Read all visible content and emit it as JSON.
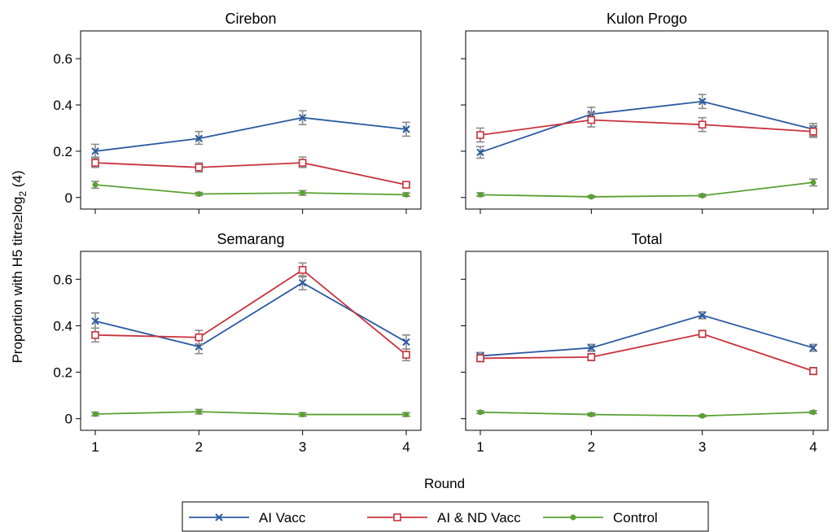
{
  "chart_data": {
    "type": "line",
    "xlabel": "Round",
    "ylabel_parts": [
      "Proportion with H5 titre≥log",
      "2",
      " (4)"
    ],
    "x": [
      1,
      2,
      3,
      4
    ],
    "xlim": [
      1,
      4
    ],
    "ylim": [
      -0.05,
      0.72
    ],
    "xticks": [
      1,
      2,
      3,
      4
    ],
    "yticks": [
      0,
      0.2,
      0.4,
      0.6
    ],
    "ytick_labels": [
      "0",
      "0.2",
      "0.4",
      "0.6"
    ],
    "grid": false,
    "legend_position": "bottom",
    "series_style": [
      {
        "name": "AI Vacc",
        "color": "#2b5aa0",
        "marker": "x"
      },
      {
        "name": "AI & ND Vacc",
        "color": "#c8323c",
        "marker": "square"
      },
      {
        "name": "Control",
        "color": "#5aa032",
        "marker": "dot"
      }
    ],
    "error_color": "#8c8c8c",
    "panels": [
      {
        "title": "Cirebon",
        "series": [
          {
            "name": "AI Vacc",
            "values": [
              0.2,
              0.255,
              0.345,
              0.295
            ],
            "lower": [
              0.175,
              0.23,
              0.315,
              0.265
            ],
            "upper": [
              0.23,
              0.285,
              0.375,
              0.325
            ]
          },
          {
            "name": "AI & ND Vacc",
            "values": [
              0.15,
              0.13,
              0.15,
              0.055
            ],
            "lower": [
              0.13,
              0.11,
              0.13,
              0.045
            ],
            "upper": [
              0.17,
              0.15,
              0.175,
              0.065
            ]
          },
          {
            "name": "Control",
            "values": [
              0.055,
              0.015,
              0.02,
              0.012
            ],
            "lower": [
              0.04,
              0.008,
              0.01,
              0.005
            ],
            "upper": [
              0.07,
              0.022,
              0.03,
              0.02
            ]
          }
        ]
      },
      {
        "title": "Kulon Progo",
        "series": [
          {
            "name": "AI Vacc",
            "values": [
              0.195,
              0.36,
              0.415,
              0.295
            ],
            "lower": [
              0.17,
              0.33,
              0.385,
              0.265
            ],
            "upper": [
              0.22,
              0.39,
              0.445,
              0.32
            ]
          },
          {
            "name": "AI & ND Vacc",
            "values": [
              0.27,
              0.335,
              0.315,
              0.285
            ],
            "lower": [
              0.24,
              0.305,
              0.285,
              0.26
            ],
            "upper": [
              0.3,
              0.365,
              0.345,
              0.31
            ]
          },
          {
            "name": "Control",
            "values": [
              0.012,
              0.003,
              0.008,
              0.065
            ],
            "lower": [
              0.005,
              0.0,
              0.003,
              0.05
            ],
            "upper": [
              0.02,
              0.008,
              0.015,
              0.08
            ]
          }
        ]
      },
      {
        "title": "Semarang",
        "series": [
          {
            "name": "AI Vacc",
            "values": [
              0.42,
              0.31,
              0.585,
              0.33
            ],
            "lower": [
              0.39,
              0.28,
              0.555,
              0.3
            ],
            "upper": [
              0.455,
              0.34,
              0.615,
              0.36
            ]
          },
          {
            "name": "AI & ND Vacc",
            "values": [
              0.36,
              0.35,
              0.64,
              0.275
            ],
            "lower": [
              0.33,
              0.32,
              0.61,
              0.25
            ],
            "upper": [
              0.39,
              0.38,
              0.67,
              0.3
            ]
          },
          {
            "name": "Control",
            "values": [
              0.02,
              0.03,
              0.018,
              0.018
            ],
            "lower": [
              0.012,
              0.02,
              0.01,
              0.01
            ],
            "upper": [
              0.028,
              0.04,
              0.026,
              0.026
            ]
          }
        ]
      },
      {
        "title": "Total",
        "series": [
          {
            "name": "AI Vacc",
            "values": [
              0.27,
              0.305,
              0.445,
              0.305
            ],
            "lower": [
              0.255,
              0.29,
              0.43,
              0.29
            ],
            "upper": [
              0.285,
              0.32,
              0.46,
              0.32
            ]
          },
          {
            "name": "AI & ND Vacc",
            "values": [
              0.26,
              0.265,
              0.365,
              0.205
            ],
            "lower": [
              0.245,
              0.25,
              0.35,
              0.19
            ],
            "upper": [
              0.275,
              0.28,
              0.38,
              0.22
            ]
          },
          {
            "name": "Control",
            "values": [
              0.028,
              0.018,
              0.012,
              0.028
            ],
            "lower": [
              0.022,
              0.012,
              0.008,
              0.022
            ],
            "upper": [
              0.034,
              0.024,
              0.016,
              0.034
            ]
          }
        ]
      }
    ]
  }
}
